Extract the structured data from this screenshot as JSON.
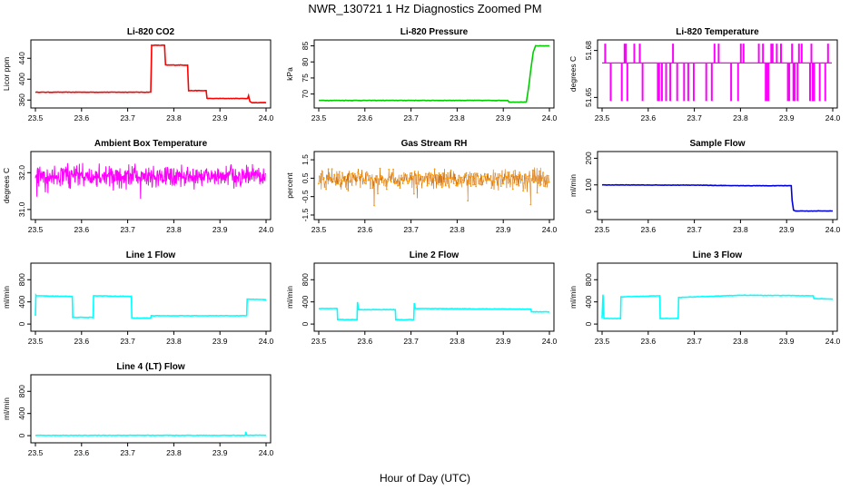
{
  "title": "NWR_130721  1 Hz Diagnostics Zoomed PM",
  "x_axis_label": "Hour of Day (UTC)",
  "chart_data": [
    {
      "type": "line",
      "title": "Li-820 CO2",
      "ylabel": "Licor ppm",
      "color": "#ff0000",
      "xlim": [
        23.5,
        24.0
      ],
      "ylim": [
        350,
        470
      ],
      "xticks": [
        "23.5",
        "23.6",
        "23.7",
        "23.8",
        "23.9",
        "24.0"
      ],
      "yticks": [
        360,
        400,
        440
      ],
      "series": [
        {
          "x": [
            23.5,
            23.75,
            23.752,
            23.78,
            23.782,
            23.83,
            23.832,
            23.87,
            23.872,
            23.96,
            23.962,
            23.965,
            23.97,
            24.0
          ],
          "y": [
            375,
            375,
            465,
            465,
            427,
            427,
            378,
            378,
            363,
            363,
            368,
            357,
            355,
            355
          ]
        }
      ]
    },
    {
      "type": "line",
      "title": "Li-820 Pressure",
      "ylabel": "kPa",
      "color": "#00cc00",
      "xlim": [
        23.5,
        24.0
      ],
      "ylim": [
        66.5,
        86
      ],
      "xticks": [
        "23.5",
        "23.6",
        "23.7",
        "23.8",
        "23.9",
        "24.0"
      ],
      "yticks": [
        70,
        75,
        80,
        85
      ],
      "series": [
        {
          "x": [
            23.5,
            23.91,
            23.912,
            23.95,
            23.955,
            23.96,
            23.965,
            23.97,
            24.0
          ],
          "y": [
            68,
            68,
            67.5,
            67.5,
            72,
            78,
            83,
            85,
            85
          ]
        }
      ]
    },
    {
      "type": "line",
      "title": "Li-820 Temperature",
      "ylabel": "degrees C",
      "color": "#ff00ff",
      "xlim": [
        23.5,
        24.0
      ],
      "ylim": [
        51.645,
        51.685
      ],
      "xticks": [
        "23.5",
        "23.6",
        "23.7",
        "23.8",
        "23.9",
        "24.0"
      ],
      "yticks": [
        51.65,
        51.68
      ],
      "ytick_labels": [
        "51.65",
        "51.68"
      ],
      "baseline": 51.672,
      "jump_up": 51.684,
      "jump_down": 51.648
    },
    {
      "type": "line",
      "title": "Ambient Box Temperature",
      "ylabel": "degrees C",
      "color": "#ff00ff",
      "xlim": [
        23.5,
        24.0
      ],
      "ylim": [
        30.8,
        32.5
      ],
      "xticks": [
        "23.5",
        "23.6",
        "23.7",
        "23.8",
        "23.9",
        "24.0"
      ],
      "yticks": [
        31.0,
        32.0
      ],
      "ytick_labels": [
        "31.0",
        "32.0"
      ],
      "noise_center": 31.9,
      "noise_amplitude": 0.35
    },
    {
      "type": "scatter",
      "title": "Gas Stream RH",
      "ylabel": "percent",
      "color": "#ff9900",
      "xlim": [
        23.5,
        24.0
      ],
      "ylim": [
        -1.6,
        1.8
      ],
      "xticks": [
        "23.5",
        "23.6",
        "23.7",
        "23.8",
        "23.9",
        "24.0"
      ],
      "yticks": [
        -1.5,
        -0.5,
        0.5,
        1.5
      ],
      "ytick_labels": [
        "-1.5",
        "-0.5",
        "0.5",
        "1.5"
      ],
      "noise_center": 0.45,
      "noise_amplitude": 0.6
    },
    {
      "type": "line",
      "title": "Sample Flow",
      "ylabel": "ml/min",
      "color": "#0000dd",
      "xlim": [
        23.5,
        24.0
      ],
      "ylim": [
        -20,
        215
      ],
      "xticks": [
        "23.5",
        "23.6",
        "23.7",
        "23.8",
        "23.9",
        "24.0"
      ],
      "yticks": [
        0,
        100,
        200
      ],
      "series": [
        {
          "x": [
            23.5,
            23.7,
            23.75,
            23.8,
            23.91,
            23.912,
            23.915,
            23.92,
            24.0
          ],
          "y": [
            100,
            99,
            98,
            97,
            97,
            40,
            5,
            2,
            2
          ]
        }
      ]
    },
    {
      "type": "line",
      "title": "Line 1 Flow",
      "ylabel": "ml/min",
      "color": "#00ffff",
      "xlim": [
        23.5,
        24.0
      ],
      "ylim": [
        -80,
        1050
      ],
      "xticks": [
        "23.5",
        "23.6",
        "23.7",
        "23.8",
        "23.9",
        "24.0"
      ],
      "yticks": [
        0,
        400,
        800
      ],
      "series": [
        {
          "x": [
            23.5,
            23.501,
            23.502,
            23.58,
            23.581,
            23.625,
            23.626,
            23.708,
            23.709,
            23.75,
            23.751,
            23.958,
            23.959,
            24.0
          ],
          "y": [
            150,
            520,
            510,
            500,
            120,
            120,
            510,
            500,
            110,
            110,
            150,
            150,
            450,
            440
          ]
        }
      ]
    },
    {
      "type": "line",
      "title": "Line 2 Flow",
      "ylabel": "ml/min",
      "color": "#00ffff",
      "xlim": [
        23.5,
        24.0
      ],
      "ylim": [
        -80,
        1050
      ],
      "xticks": [
        "23.5",
        "23.6",
        "23.7",
        "23.8",
        "23.9",
        "24.0"
      ],
      "yticks": [
        0,
        400,
        800
      ],
      "series": [
        {
          "x": [
            23.5,
            23.54,
            23.541,
            23.583,
            23.584,
            23.586,
            23.666,
            23.667,
            23.706,
            23.707,
            23.709,
            23.96,
            23.961,
            24.0
          ],
          "y": [
            280,
            280,
            80,
            80,
            400,
            260,
            260,
            80,
            80,
            380,
            280,
            270,
            220,
            220
          ]
        }
      ]
    },
    {
      "type": "line",
      "title": "Line 3 Flow",
      "ylabel": "ml/min",
      "color": "#00ffff",
      "xlim": [
        23.5,
        24.0
      ],
      "ylim": [
        -80,
        1050
      ],
      "xticks": [
        "23.5",
        "23.6",
        "23.7",
        "23.8",
        "23.9",
        "24.0"
      ],
      "yticks": [
        0,
        400,
        800
      ],
      "series": [
        {
          "x": [
            23.5,
            23.502,
            23.504,
            23.54,
            23.541,
            23.625,
            23.626,
            23.665,
            23.666,
            23.8,
            23.958,
            23.959,
            24.0
          ],
          "y": [
            100,
            530,
            100,
            100,
            490,
            510,
            100,
            100,
            480,
            520,
            510,
            460,
            450
          ]
        }
      ]
    },
    {
      "type": "line",
      "title": "Line 4 (LT) Flow",
      "ylabel": "ml/min",
      "color": "#00ffff",
      "xlim": [
        23.5,
        24.0
      ],
      "ylim": [
        -80,
        1050
      ],
      "xticks": [
        "23.5",
        "23.6",
        "23.7",
        "23.8",
        "23.9",
        "24.0"
      ],
      "yticks": [
        0,
        400,
        800
      ],
      "series": [
        {
          "x": [
            23.5,
            23.955,
            23.956,
            23.958,
            23.96,
            24.0
          ],
          "y": [
            5,
            5,
            70,
            5,
            8,
            8
          ]
        }
      ]
    }
  ]
}
